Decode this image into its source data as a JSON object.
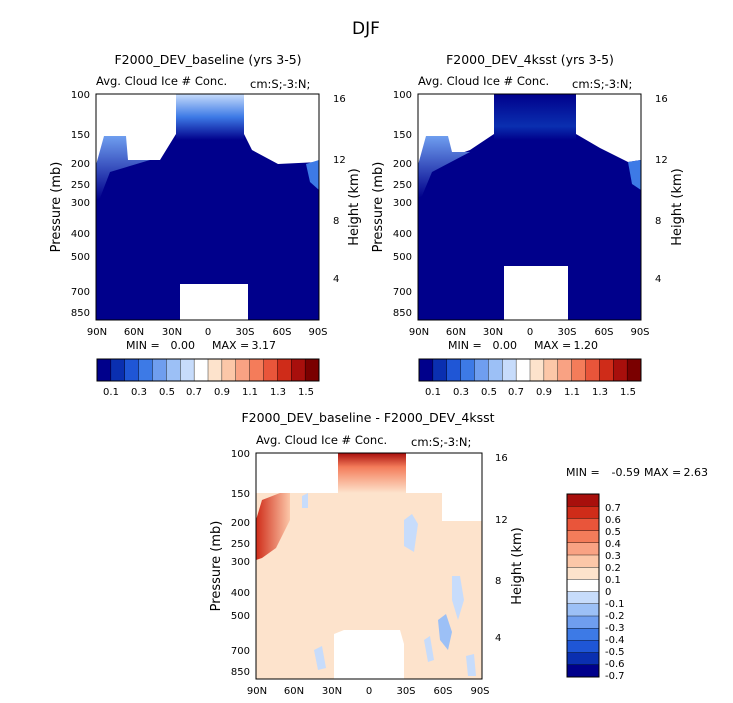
{
  "figure": {
    "title": "DJF",
    "panel_subtitle_left": "Avg. Cloud Ice # Conc.",
    "panel_subtitle_right": "cm:S;-3:N;"
  },
  "chart_data": [
    {
      "type": "heatmap",
      "id": "panel-baseline",
      "title": "F2000_DEV_baseline (yrs 3-5)",
      "subtitle_left": "Avg. Cloud Ice # Conc.",
      "subtitle_right": "cm:S;-3:N;",
      "xlabel": "",
      "ylabel": "Pressure (mb)",
      "ylabel_right": "Height (km)",
      "x_ticks": [
        "90N",
        "60N",
        "30N",
        "0",
        "30S",
        "60S",
        "90S"
      ],
      "y_ticks": [
        "100",
        "150",
        "200",
        "250",
        "300",
        "400",
        "500",
        "700",
        "850"
      ],
      "y_right_ticks": [
        "16",
        "12",
        "8",
        "4"
      ],
      "min_label": "MIN =",
      "min_value": "0.00",
      "max_label": "MAX =",
      "max_value": "3.17",
      "colorbar_labels": [
        "0.1",
        "0.3",
        "0.5",
        "0.7",
        "0.9",
        "1.1",
        "1.3",
        "1.5"
      ]
    },
    {
      "type": "heatmap",
      "id": "panel-4ksst",
      "title": "F2000_DEV_4ksst (yrs 3-5)",
      "subtitle_left": "Avg. Cloud Ice # Conc.",
      "subtitle_right": "cm:S;-3:N;",
      "xlabel": "",
      "ylabel": "Pressure (mb)",
      "ylabel_right": "Height (km)",
      "x_ticks": [
        "90N",
        "60N",
        "30N",
        "0",
        "30S",
        "60S",
        "90S"
      ],
      "y_ticks": [
        "100",
        "150",
        "200",
        "250",
        "300",
        "400",
        "500",
        "700",
        "850"
      ],
      "y_right_ticks": [
        "16",
        "12",
        "8",
        "4"
      ],
      "min_label": "MIN =",
      "min_value": "0.00",
      "max_label": "MAX =",
      "max_value": "1.20",
      "colorbar_labels": [
        "0.1",
        "0.3",
        "0.5",
        "0.7",
        "0.9",
        "1.1",
        "1.3",
        "1.5"
      ]
    },
    {
      "type": "heatmap",
      "id": "panel-diff",
      "title": "F2000_DEV_baseline - F2000_DEV_4ksst",
      "subtitle_left": "Avg. Cloud Ice # Conc.",
      "subtitle_right": "cm:S;-3:N;",
      "xlabel": "",
      "ylabel": "Pressure (mb)",
      "ylabel_right": "Height (km)",
      "x_ticks": [
        "90N",
        "60N",
        "30N",
        "0",
        "30S",
        "60S",
        "90S"
      ],
      "y_ticks": [
        "100",
        "150",
        "200",
        "250",
        "300",
        "400",
        "500",
        "700",
        "850"
      ],
      "y_right_ticks": [
        "16",
        "12",
        "8",
        "4"
      ],
      "min_label": "MIN =",
      "min_value": "-0.59",
      "max_label": "MAX =",
      "max_value": "2.63",
      "colorbar_labels": [
        "0.7",
        "0.6",
        "0.5",
        "0.4",
        "0.3",
        "0.2",
        "0.1",
        "0",
        "-0.1",
        "-0.2",
        "-0.3",
        "-0.4",
        "-0.5",
        "-0.6",
        "-0.7"
      ]
    }
  ],
  "colors": {
    "seq": [
      "#00008b",
      "#0a2fb0",
      "#1f56d6",
      "#3d7ae6",
      "#6f9eef",
      "#9cc0f6",
      "#c7dcfb",
      "#ffffff",
      "#fde3cc",
      "#fcc7a8",
      "#f9a283",
      "#f47c5a",
      "#e9553a",
      "#cf2c19",
      "#a80f0c",
      "#7a0000"
    ],
    "div": [
      "#00008b",
      "#0a2fb0",
      "#1f56d6",
      "#3d7ae6",
      "#6f9eef",
      "#9cc0f6",
      "#c7dcfb",
      "#ffffff",
      "#fde3cc",
      "#fcc7a8",
      "#f9a283",
      "#f47c5a",
      "#e9553a",
      "#cf2c19",
      "#a80f0c"
    ]
  }
}
